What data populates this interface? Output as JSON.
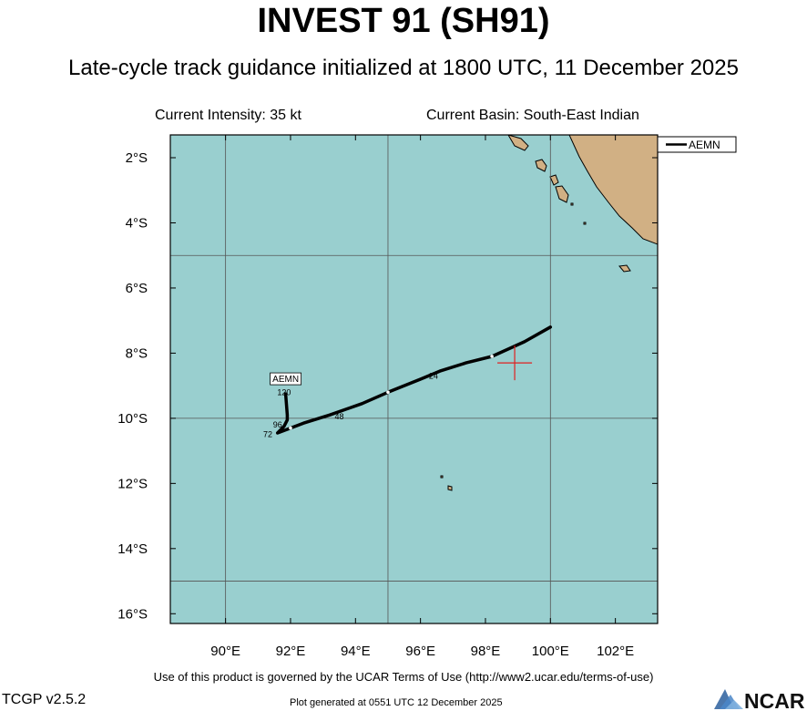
{
  "header": {
    "title": "INVEST 91 (SH91)",
    "subtitle": "Late-cycle track guidance initialized at 1800 UTC, 11 December 2025",
    "intensity": "Current Intensity: 35 kt",
    "basin": "Current Basin: South-East Indian"
  },
  "map": {
    "lon_range": [
      88.3,
      103.3
    ],
    "lat_range": [
      -16.3,
      -1.3
    ],
    "lon_ticks": [
      "90°E",
      "92°E",
      "94°E",
      "96°E",
      "98°E",
      "100°E",
      "102°E"
    ],
    "lat_ticks": [
      "2°S",
      "4°S",
      "6°S",
      "8°S",
      "10°S",
      "12°S",
      "14°S",
      "16°S"
    ],
    "ocean_color": "#99cfcf",
    "land_color": "#d1b084",
    "current_position": {
      "lon": 98.9,
      "lat": -8.3,
      "color": "#e02020"
    },
    "track": {
      "name": "AEMN",
      "points": [
        {
          "lon": 100.0,
          "lat": -7.2
        },
        {
          "lon": 99.2,
          "lat": -7.65
        },
        {
          "lon": 98.2,
          "lat": -8.1
        },
        {
          "lon": 97.4,
          "lat": -8.3
        },
        {
          "lon": 96.6,
          "lat": -8.55
        },
        {
          "lon": 96.0,
          "lat": -8.8
        },
        {
          "lon": 95.0,
          "lat": -9.2
        },
        {
          "lon": 94.2,
          "lat": -9.55
        },
        {
          "lon": 93.2,
          "lat": -9.9
        },
        {
          "lon": 92.4,
          "lat": -10.15
        },
        {
          "lon": 92.0,
          "lat": -10.3
        },
        {
          "lon": 91.6,
          "lat": -10.45
        },
        {
          "lon": 91.8,
          "lat": -10.25
        },
        {
          "lon": 91.9,
          "lat": -10.05
        },
        {
          "lon": 91.9,
          "lat": -9.9
        },
        {
          "lon": 91.85,
          "lat": -9.25
        }
      ],
      "labels": [
        {
          "text": "24",
          "lon": 96.4,
          "lat": -8.7
        },
        {
          "text": "48",
          "lon": 93.5,
          "lat": -9.95
        },
        {
          "text": "72",
          "lon": 91.3,
          "lat": -10.5
        },
        {
          "text": "96",
          "lon": 91.6,
          "lat": -10.2
        },
        {
          "text": "120",
          "lon": 91.8,
          "lat": -9.2
        }
      ],
      "end_label": "AEMN"
    },
    "legend": {
      "entries": [
        "AEMN"
      ]
    }
  },
  "footer": {
    "terms": "Use of this product is governed by the UCAR Terms of Use (http://www2.ucar.edu/terms-of-use)",
    "version": "TCGP v2.5.2",
    "generated": "Plot generated at 0551 UTC   12 December 2025",
    "logo_text": "NCAR"
  }
}
